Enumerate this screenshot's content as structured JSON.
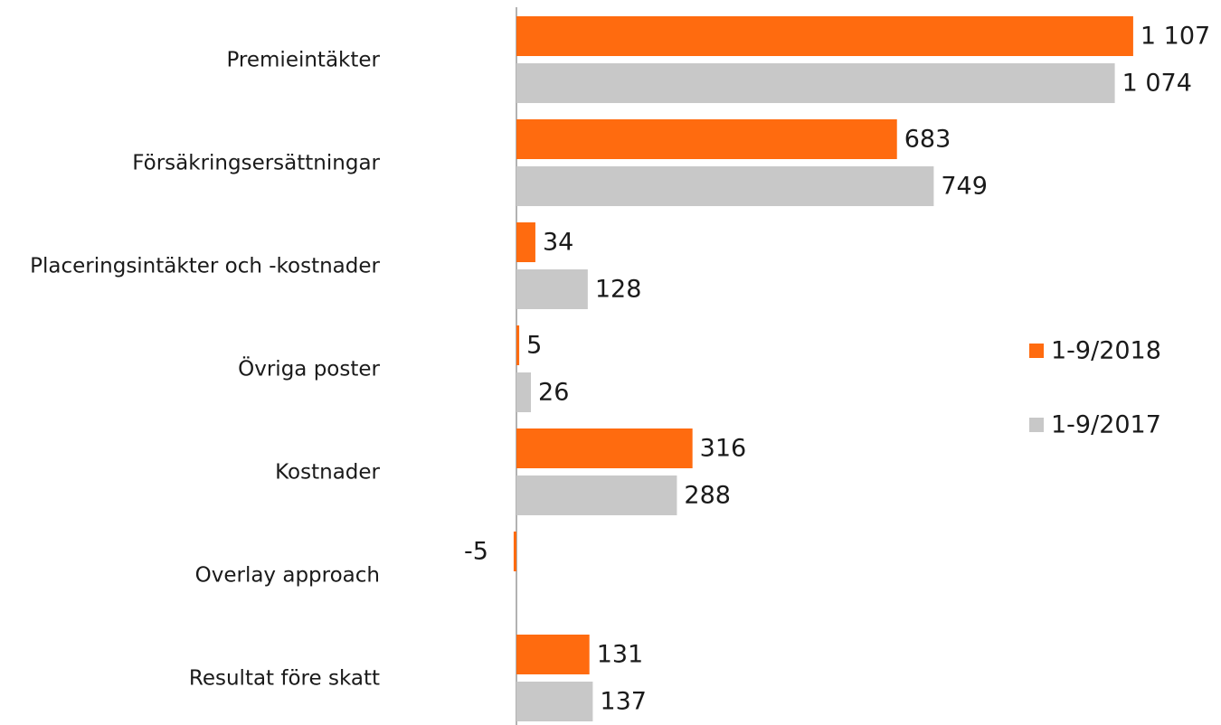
{
  "chart_data": {
    "type": "bar",
    "orientation": "horizontal",
    "categories": [
      "Premieintäkter",
      "Försäkringsersättningar",
      "Placeringsintäkter och -kostnader",
      "Övriga poster",
      "Kostnader",
      "Overlay approach",
      "Resultat före skatt"
    ],
    "series": [
      {
        "name": "1-9/2018",
        "color": "#ff6b0f",
        "values": [
          1107,
          683,
          34,
          5,
          316,
          -5,
          131
        ],
        "value_labels": [
          "1 107",
          "683",
          "34",
          "5",
          "316",
          "-5",
          "131"
        ]
      },
      {
        "name": "1-9/2017",
        "color": "#c8c8c8",
        "values": [
          1074,
          749,
          128,
          26,
          288,
          null,
          137
        ],
        "value_labels": [
          "1 074",
          "749",
          "128",
          "26",
          "288",
          null,
          "137"
        ]
      }
    ],
    "legend": "right"
  }
}
